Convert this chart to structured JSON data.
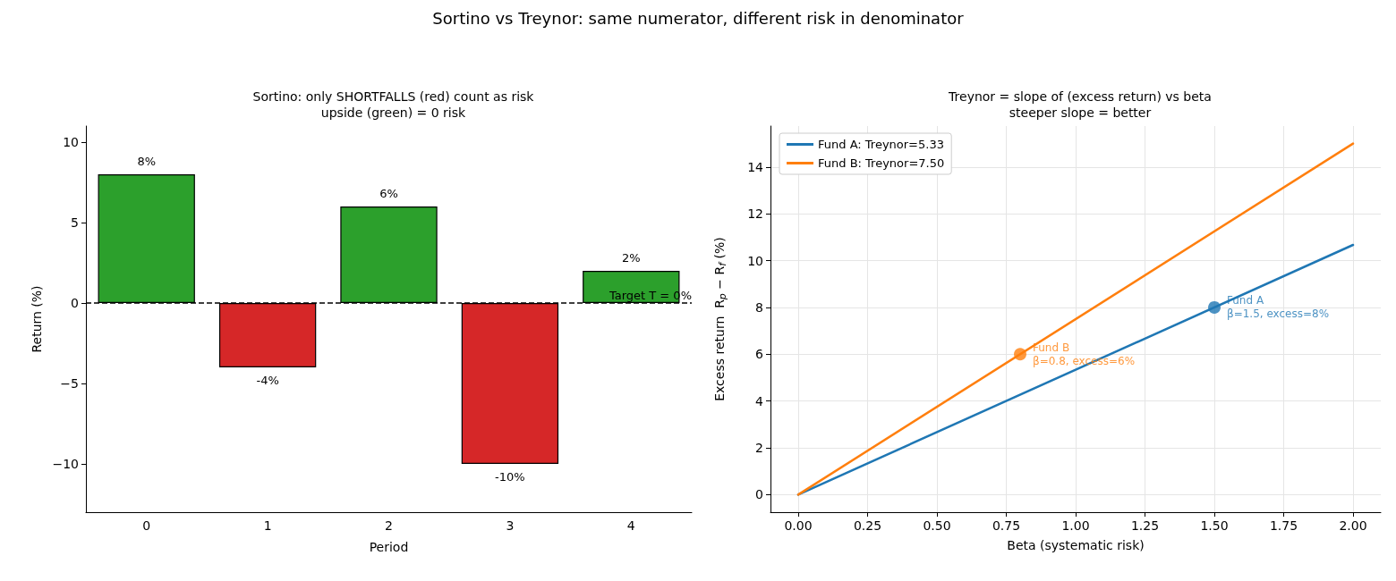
{
  "chart_data": [
    {
      "type": "bar",
      "title": "Sortino: only SHORTFALLS (red) count as risk\nupside (green) = 0 risk",
      "xlabel": "Period",
      "ylabel": "Return (%)",
      "annotations": [
        "Sortino vs Treynor: same numerator, different risk in denominator"
      ],
      "categories": [
        "0",
        "1",
        "2",
        "3",
        "4"
      ],
      "values": [
        8,
        -4,
        6,
        -10,
        2
      ],
      "colors": [
        "#2ca02c",
        "#d62728",
        "#2ca02c",
        "#d62728",
        "#2ca02c"
      ],
      "value_labels": [
        "8%",
        "-4%",
        "6%",
        "-10%",
        "2%"
      ],
      "ylim": [
        -13,
        11
      ],
      "yticks": [
        -10,
        -5,
        0,
        5,
        10
      ],
      "grid": false,
      "legend": false,
      "ref_lines": [
        {
          "axis": "y",
          "value": 0,
          "label": "Target T = 0%",
          "color": "#000000",
          "line_style": "dashed"
        }
      ]
    },
    {
      "type": "line",
      "title": "Treynor = slope of (excess return) vs beta\nsteeper slope = better",
      "xlabel": "Beta (systematic risk)",
      "ylabel": "Excess return  R$_{p}$ − R$_{f}$ (%)",
      "series": [
        {
          "name": "Fund A: Treynor=5.33",
          "color": "#1f77b4",
          "x": [
            0,
            2
          ],
          "values": [
            0,
            10.67
          ],
          "marker": "none"
        },
        {
          "name": "Fund B: Treynor=7.50",
          "color": "#ff7f0e",
          "x": [
            0,
            2
          ],
          "values": [
            0,
            15
          ],
          "marker": "none"
        },
        {
          "type": "scatter",
          "color": "#1f77b4",
          "x": [
            1.5
          ],
          "values": [
            8
          ],
          "marker": "circle"
        },
        {
          "type": "scatter",
          "color": "#ff7f0e",
          "x": [
            0.8
          ],
          "values": [
            6
          ],
          "marker": "circle"
        }
      ],
      "annotations": [
        {
          "text": "Fund A\nβ=1.5, excess=8%",
          "x": 1.5,
          "y": 8
        },
        {
          "text": "Fund B\nβ=0.8, excess=6%",
          "x": 0.8,
          "y": 6
        }
      ],
      "xlim": [
        -0.1,
        2.1
      ],
      "xticks": [
        {
          "value": 0,
          "label": "0.00"
        },
        {
          "value": 0.25,
          "label": "0.25"
        },
        {
          "value": 0.5,
          "label": "0.50"
        },
        {
          "value": 0.75,
          "label": "0.75"
        },
        {
          "value": 1,
          "label": "1.00"
        },
        {
          "value": 1.25,
          "label": "1.25"
        },
        {
          "value": 1.5,
          "label": "1.50"
        },
        {
          "value": 1.75,
          "label": "1.75"
        },
        {
          "value": 2,
          "label": "2.00"
        }
      ],
      "ylim": [
        -0.75,
        15.75
      ],
      "yticks": [
        0,
        2,
        4,
        6,
        8,
        10,
        12,
        14
      ],
      "grid": true,
      "legend": "top left"
    }
  ]
}
